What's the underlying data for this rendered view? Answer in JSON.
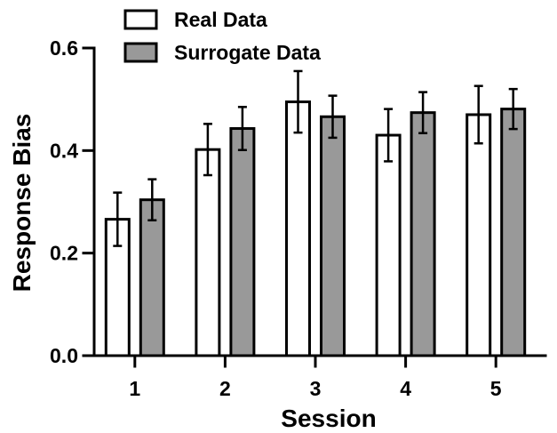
{
  "chart_data": {
    "type": "bar",
    "xlabel": "Session",
    "ylabel": "Response Bias",
    "ylim": [
      0,
      0.6
    ],
    "yticks": [
      "0.0",
      "0.2",
      "0.4",
      "0.6"
    ],
    "categories": [
      "1",
      "2",
      "3",
      "4",
      "5"
    ],
    "series": [
      {
        "name": "Real Data",
        "color": "#ffffff",
        "values": [
          0.266,
          0.402,
          0.495,
          0.43,
          0.47
        ],
        "errors": [
          0.052,
          0.05,
          0.06,
          0.051,
          0.056
        ]
      },
      {
        "name": "Surrogate Data",
        "color": "#999999",
        "values": [
          0.304,
          0.443,
          0.466,
          0.474,
          0.481
        ],
        "errors": [
          0.04,
          0.042,
          0.041,
          0.04,
          0.039
        ]
      }
    ],
    "legend": "top-left",
    "grid": false
  }
}
